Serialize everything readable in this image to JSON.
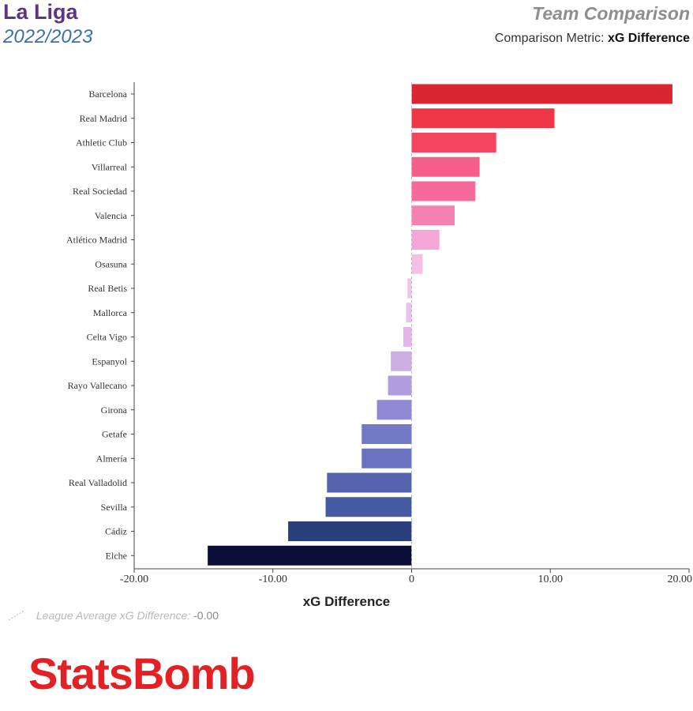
{
  "header": {
    "league": "La Liga",
    "season": "2022/2023",
    "title": "Team Comparison",
    "metric_prefix": "Comparison Metric:",
    "metric_name": "xG Difference"
  },
  "footer": {
    "avg_label": "League Average xG Difference:",
    "avg_value": "-0.00",
    "logo": "StatsBomb"
  },
  "chart_data": {
    "type": "bar",
    "orientation": "horizontal",
    "xlabel": "xG Difference",
    "xlim": [
      -20,
      20
    ],
    "x_ticks": [
      -20,
      -10,
      0,
      10,
      20
    ],
    "x_tick_labels": [
      "-20.00",
      "-10.00",
      "0",
      "10.00",
      "20.00"
    ],
    "reference_line": 0,
    "categories": [
      "Barcelona",
      "Real Madrid",
      "Athletic Club",
      "Villarreal",
      "Real Sociedad",
      "Valencia",
      "Atlético Madrid",
      "Osasuna",
      "Real Betis",
      "Mallorca",
      "Celta Vigo",
      "Espanyol",
      "Rayo Vallecano",
      "Girona",
      "Getafe",
      "Almería",
      "Real Valladolid",
      "Sevilla",
      "Cádiz",
      "Elche"
    ],
    "values": [
      18.8,
      10.3,
      6.1,
      4.9,
      4.6,
      3.1,
      2.0,
      0.8,
      -0.3,
      -0.4,
      -0.6,
      -1.5,
      -1.7,
      -2.5,
      -3.6,
      -3.6,
      -6.1,
      -6.2,
      -8.9,
      -14.7
    ],
    "colors": [
      "#db2530",
      "#ef3644",
      "#f4455f",
      "#f45e8a",
      "#f56a9b",
      "#f481ae",
      "#f4a6d6",
      "#f3c0e6",
      "#edc4ec",
      "#e8c2ec",
      "#e3b6e7",
      "#ccaee2",
      "#b29ddf",
      "#9088d2",
      "#7479c5",
      "#6a73bf",
      "#5563ae",
      "#465aa3",
      "#2a3d7c",
      "#0a0e36"
    ]
  }
}
